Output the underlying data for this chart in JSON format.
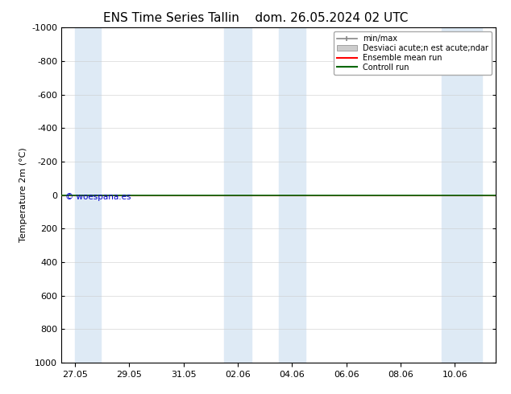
{
  "title_left": "ENS Time Series Tallin",
  "title_right": "dom. 26.05.2024 02 UTC",
  "ylabel": "Temperature 2m (°C)",
  "ylim_bottom": 1000,
  "ylim_top": -1000,
  "yticks": [
    -1000,
    -800,
    -600,
    -400,
    -200,
    0,
    200,
    400,
    600,
    800,
    1000
  ],
  "xtick_labels": [
    "27.05",
    "29.05",
    "31.05",
    "02.06",
    "04.06",
    "06.06",
    "08.06",
    "10.06"
  ],
  "bg_color": "#ffffff",
  "plot_bg_color": "#ffffff",
  "shaded_color": "#deeaf5",
  "shaded_bands": [
    [
      0.0,
      0.95
    ],
    [
      5.5,
      6.5
    ],
    [
      7.5,
      8.5
    ],
    [
      13.5,
      15.0
    ]
  ],
  "green_line_y": 0,
  "red_line_y": 0,
  "green_color": "#006600",
  "red_color": "#ff0000",
  "watermark": "© woespana.es",
  "watermark_color": "#0000cc",
  "legend_labels": [
    "min/max",
    "Desviaci acute;n est acute;ndar",
    "Ensemble mean run",
    "Controll run"
  ],
  "legend_minmax_color": "#888888",
  "legend_std_color": "#cccccc",
  "legend_mean_color": "#ff0000",
  "legend_ctrl_color": "#006600",
  "title_fontsize": 11,
  "axis_fontsize": 8,
  "tick_fontsize": 8,
  "x_min": -0.5,
  "x_max": 15.5,
  "num_xticks": 8
}
